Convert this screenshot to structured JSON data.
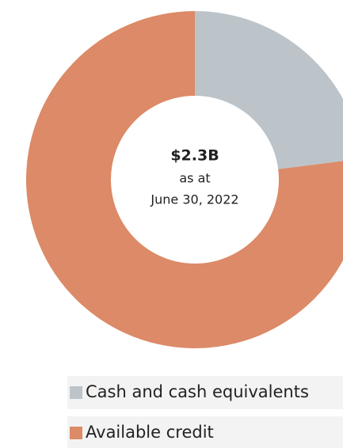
{
  "chart_data": {
    "type": "donut",
    "categories": [
      "Cash and cash equivalents",
      "Available credit"
    ],
    "values": [
      23,
      77
    ],
    "colors": [
      "#bcc4c9",
      "#dc8a67"
    ],
    "annotations": [
      "$2.3B",
      "as at",
      "June 30, 2022"
    ]
  }
}
